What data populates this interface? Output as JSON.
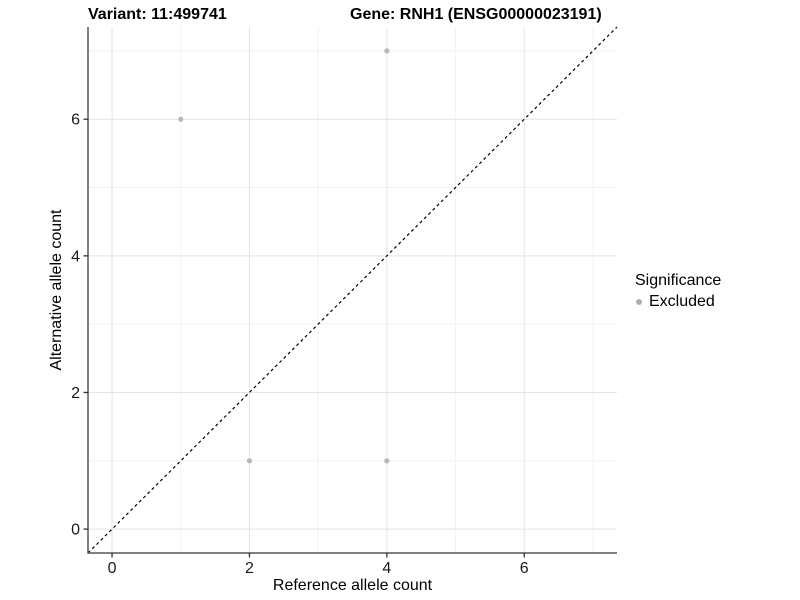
{
  "header": {
    "variant_title": "Variant: 11:499741",
    "gene_title": "Gene: RNH1 (ENSG00000023191)"
  },
  "legend": {
    "title": "Significance",
    "items": [
      {
        "label": "Excluded",
        "marker": "circle-icon",
        "color": "#b0b0b0"
      }
    ]
  },
  "chart_data": {
    "type": "scatter",
    "title_left": "Variant: 11:499741",
    "title_right": "Gene: RNH1 (ENSG00000023191)",
    "xlabel": "Reference allele count",
    "ylabel": "Alternative allele count",
    "xlim": [
      -0.35,
      7.35
    ],
    "ylim": [
      -0.35,
      7.35
    ],
    "x_major_ticks": [
      0,
      2,
      4,
      6
    ],
    "y_major_ticks": [
      0,
      2,
      4,
      6
    ],
    "x_minor_gridlines": [
      1,
      3,
      5,
      7
    ],
    "y_minor_gridlines": [
      1,
      3,
      5,
      7
    ],
    "grid": true,
    "legend_position": "right",
    "series": [
      {
        "name": "Excluded",
        "color": "#b8b8b8",
        "points": [
          {
            "x": 1,
            "y": 6
          },
          {
            "x": 2,
            "y": 1
          },
          {
            "x": 4,
            "y": 1
          },
          {
            "x": 4,
            "y": 7
          }
        ]
      }
    ],
    "reference_line": {
      "type": "identity",
      "style": "dashed",
      "color": "#000000"
    },
    "colors": {
      "grid_major": "#e4e4e4",
      "grid_minor": "#f2f2f2",
      "axis_line": "#565656",
      "tick": "#333333"
    }
  }
}
